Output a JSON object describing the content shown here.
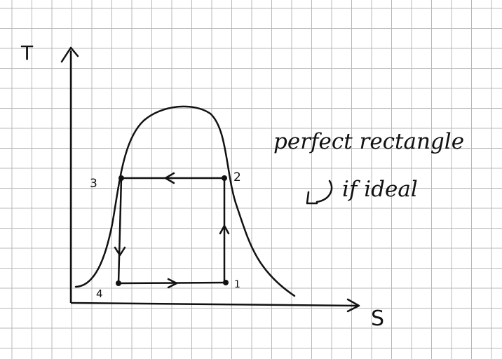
{
  "axes": {
    "y_label": "T",
    "x_label": "S"
  },
  "points": {
    "p1": "1",
    "p2": "2",
    "p3": "3",
    "p4": "4"
  },
  "annotation": {
    "line1": "perfect rectangle",
    "line2": "if ideal"
  },
  "colors": {
    "ink": "#111111",
    "grid": "#b8b8b8",
    "paper": "#ffffff"
  }
}
